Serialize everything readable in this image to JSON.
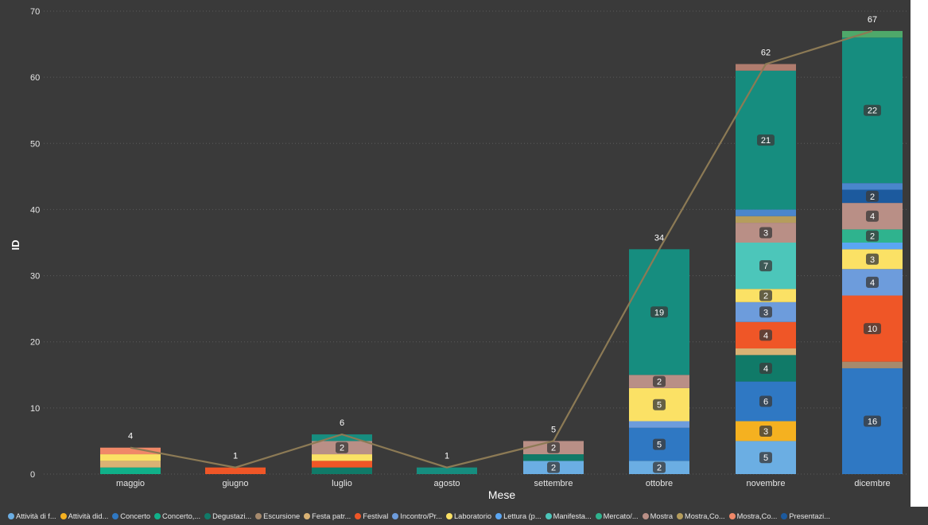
{
  "chart_data": {
    "type": "bar",
    "stacked": true,
    "xlabel": "Mese",
    "ylabel": "ID",
    "ylim": [
      0,
      70
    ],
    "y_ticks": [
      0,
      10,
      20,
      30,
      40,
      50,
      60,
      70
    ],
    "grid": true,
    "legend_position": "bottom",
    "categories": [
      "maggio",
      "giugno",
      "luglio",
      "agosto",
      "settembre",
      "ottobre",
      "novembre",
      "dicembre"
    ],
    "series": [
      {
        "name": "Attività di f...",
        "color": "#6baee3",
        "values": [
          0,
          0,
          0,
          0,
          2,
          2,
          5,
          0
        ]
      },
      {
        "name": "Attività did...",
        "color": "#f5b120",
        "values": [
          0,
          0,
          0,
          0,
          0,
          0,
          3,
          0
        ]
      },
      {
        "name": "Concerto",
        "color": "#2f78c3",
        "values": [
          0,
          0,
          0,
          0,
          0,
          5,
          6,
          16
        ]
      },
      {
        "name": "Concerto,...",
        "color": "#10b089",
        "values": [
          1,
          0,
          0,
          0,
          0,
          0,
          0,
          0
        ]
      },
      {
        "name": "Degustazi...",
        "color": "#107a68",
        "values": [
          0,
          0,
          1,
          0,
          1,
          0,
          4,
          0
        ]
      },
      {
        "name": "Escursione",
        "color": "#a68a6d",
        "values": [
          0,
          0,
          0,
          0,
          0,
          0,
          0,
          1
        ]
      },
      {
        "name": "Festa patr...",
        "color": "#d9b274",
        "values": [
          1,
          0,
          0,
          0,
          0,
          0,
          1,
          0
        ]
      },
      {
        "name": "Festival",
        "color": "#ef5627",
        "values": [
          0,
          1,
          1,
          0,
          0,
          0,
          4,
          10
        ]
      },
      {
        "name": "Incontro/Pr...",
        "color": "#6d9cdc",
        "values": [
          0,
          0,
          0,
          0,
          0,
          1,
          3,
          4
        ]
      },
      {
        "name": "Laboratorio",
        "color": "#fbe165",
        "values": [
          1,
          0,
          1,
          0,
          0,
          5,
          2,
          3
        ]
      },
      {
        "name": "Lettura (p...",
        "color": "#5ba6f2",
        "values": [
          0,
          0,
          0,
          0,
          0,
          0,
          0,
          1
        ]
      },
      {
        "name": "Manifesta...",
        "color": "#4cc6ba",
        "values": [
          0,
          0,
          0,
          0,
          0,
          0,
          7,
          0
        ]
      },
      {
        "name": "Mercato/...",
        "color": "#2fb38e",
        "values": [
          0,
          0,
          0,
          0,
          0,
          0,
          0,
          2
        ]
      },
      {
        "name": "Mostra",
        "color": "#b98f86",
        "values": [
          0,
          0,
          2,
          0,
          2,
          2,
          3,
          4
        ]
      },
      {
        "name": "Mostra,Co...",
        "color": "#b59d5c",
        "values": [
          0,
          0,
          0,
          0,
          0,
          0,
          1,
          0
        ]
      },
      {
        "name": "Mostra,Co...",
        "color": "#f08868",
        "values": [
          1,
          0,
          0,
          0,
          0,
          0,
          0,
          0
        ]
      },
      {
        "name": "Presentazi...",
        "color": "#1c5a9e",
        "values": [
          0,
          0,
          0,
          0,
          0,
          0,
          0,
          2
        ]
      },
      {
        "name": "",
        "color": "#4a86cc",
        "values": [
          0,
          0,
          0,
          0,
          0,
          0,
          1,
          1
        ]
      },
      {
        "name": "",
        "color": "#168d7f",
        "values": [
          0,
          0,
          1,
          1,
          0,
          19,
          21,
          22
        ]
      },
      {
        "name": "",
        "color": "#b07c6e",
        "values": [
          0,
          0,
          0,
          0,
          0,
          0,
          1,
          0
        ]
      },
      {
        "name": "",
        "color": "#4fa86a",
        "values": [
          0,
          0,
          0,
          0,
          0,
          0,
          0,
          1
        ]
      }
    ],
    "totals": [
      4,
      1,
      6,
      1,
      5,
      34,
      62,
      67
    ],
    "line": {
      "color": "#8c7a55",
      "values": [
        4,
        1,
        6,
        1,
        5,
        34,
        62,
        67
      ]
    }
  }
}
